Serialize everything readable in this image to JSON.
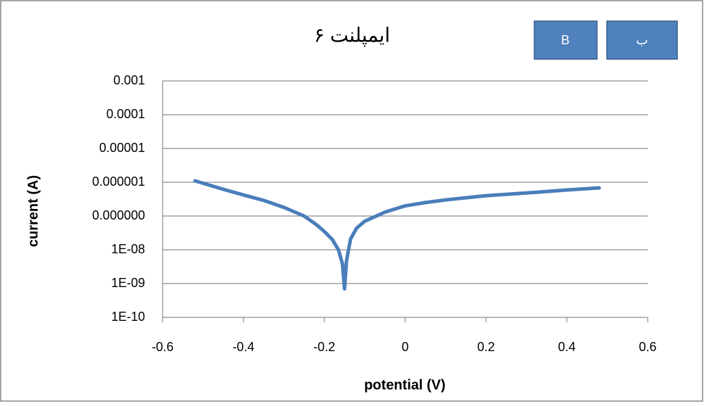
{
  "buttons": [
    "B",
    "ب"
  ],
  "chart_data": {
    "type": "line",
    "title": "ایمپلنت ۶",
    "x_label": "potential (V)",
    "y_label": "current (A)",
    "xlim": [
      -0.6,
      0.6
    ],
    "xticks": [
      -0.6,
      -0.4,
      -0.2,
      0,
      0.2,
      0.4,
      0.6
    ],
    "ylim": [
      1e-10,
      0.001
    ],
    "ylog": true,
    "grid": true,
    "yticks": [
      {
        "value": 0.001,
        "label": "0.001"
      },
      {
        "value": 0.0001,
        "label": "0.0001"
      },
      {
        "value": 1e-05,
        "label": "0.00001"
      },
      {
        "value": 1e-06,
        "label": "0.000001"
      },
      {
        "value": 1e-07,
        "label": "0.000000"
      },
      {
        "value": 1e-08,
        "label": "1E-08"
      },
      {
        "value": 1e-09,
        "label": "1E-09"
      },
      {
        "value": 1e-10,
        "label": "1E-10"
      }
    ],
    "series": [
      {
        "color": "#4a7ebb",
        "x": [
          -0.52,
          -0.45,
          -0.4,
          -0.35,
          -0.3,
          -0.25,
          -0.22,
          -0.2,
          -0.18,
          -0.165,
          -0.155,
          -0.15,
          -0.145,
          -0.135,
          -0.12,
          -0.1,
          -0.05,
          0,
          0.05,
          0.1,
          0.2,
          0.3,
          0.4,
          0.48
        ],
        "values": [
          1.1e-06,
          6.2e-07,
          4.2e-07,
          2.9e-07,
          1.8e-07,
          1e-07,
          5.6e-08,
          3.5e-08,
          2e-08,
          1e-08,
          3.8e-09,
          7e-10,
          4.8e-09,
          2.1e-08,
          4.4e-08,
          7e-08,
          1.3e-07,
          2e-07,
          2.5e-07,
          3e-07,
          4e-07,
          4.8e-07,
          5.9e-07,
          6.8e-07
        ]
      }
    ]
  }
}
